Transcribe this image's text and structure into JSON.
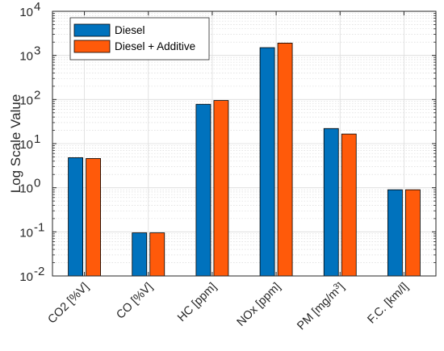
{
  "chart_data": {
    "type": "bar",
    "ylabel": "Log Scale Value",
    "xlabel": "",
    "yscale": "log",
    "ylim": [
      0.01,
      10000
    ],
    "y_ticks": [
      {
        "value": 0.01,
        "base": "10",
        "exp": "-2"
      },
      {
        "value": 0.1,
        "base": "10",
        "exp": "-1"
      },
      {
        "value": 1,
        "base": "10",
        "exp": "0"
      },
      {
        "value": 10,
        "base": "10",
        "exp": "1"
      },
      {
        "value": 100,
        "base": "10",
        "exp": "2"
      },
      {
        "value": 1000,
        "base": "10",
        "exp": "3"
      },
      {
        "value": 10000,
        "base": "10",
        "exp": "4"
      }
    ],
    "grid": true,
    "minor_grid": true,
    "legend_position": "top-left",
    "categories": [
      {
        "label": "CO2 [%V]"
      },
      {
        "label": "CO [%V]"
      },
      {
        "label": "HC [ppm]"
      },
      {
        "label": "NOx [ppm]"
      },
      {
        "label": "PM [mg/m",
        "sup": "3",
        "after": "]"
      },
      {
        "label": "F.C. [km/l]"
      }
    ],
    "series": [
      {
        "name": "Diesel",
        "color": "#0072BD",
        "values": [
          4.8,
          0.095,
          78,
          1500,
          22,
          0.9
        ]
      },
      {
        "name": "Diesel + Additive",
        "color": "#FF5A0A",
        "values": [
          4.6,
          0.095,
          95,
          1900,
          16.5,
          0.9
        ]
      }
    ]
  }
}
